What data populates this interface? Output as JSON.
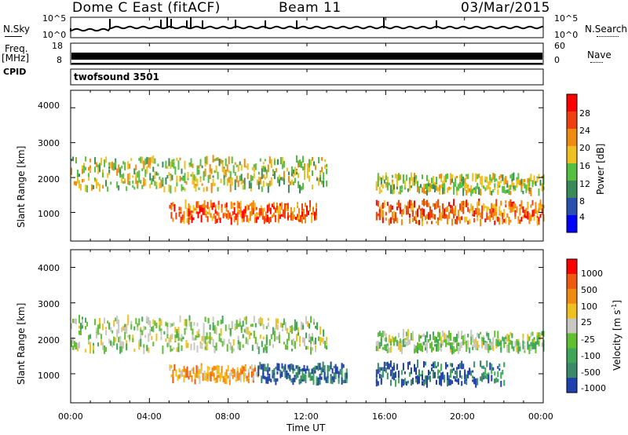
{
  "header": {
    "station": "Dome C East (fitACF)",
    "beam": "Beam 11",
    "date": "03/Mar/2015"
  },
  "strip_labels": {
    "nsky": "N.Sky",
    "freq": "Freq.",
    "freq_unit": "[MHz]",
    "cpid": "CPID",
    "nsearch": "N.Search",
    "nave": "Nave",
    "nsky_ticks": [
      "10^5",
      "10^0"
    ],
    "freq_ticks": [
      "18",
      "8"
    ],
    "nave_ticks": [
      "60",
      "0"
    ]
  },
  "cpid_text": "twofsound 3501",
  "chart_data": [
    {
      "type": "heatmap",
      "panel": "power",
      "ylabel": "Slant Range [km]",
      "xlabel": "Time UT",
      "ylim": [
        180,
        4500
      ],
      "yticks": [
        "4000",
        "3000",
        "2000",
        "1000"
      ],
      "xticks": [
        "00:00",
        "04:00",
        "08:00",
        "12:00",
        "16:00",
        "20:00",
        "00:00"
      ],
      "colorbar_label": "Power [dB]",
      "colorbar_ticks": [
        "28",
        "24",
        "20",
        "16",
        "12",
        "8",
        "4"
      ],
      "colors": [
        "#0000ff",
        "#2a4fb0",
        "#3a8a5a",
        "#55c040",
        "#f0c020",
        "#f08a10",
        "#f04010",
        "#ff0000"
      ],
      "scatter_bands": [
        {
          "t_start": 0.0,
          "t_end": 13.0,
          "range_center": 2100,
          "range_width": 900,
          "level": 4
        },
        {
          "t_start": 5.0,
          "t_end": 12.5,
          "range_center": 1000,
          "range_width": 500,
          "level": 6
        },
        {
          "t_start": 15.5,
          "t_end": 24.0,
          "range_center": 1000,
          "range_width": 600,
          "level": 6
        },
        {
          "t_start": 15.5,
          "t_end": 24.0,
          "range_center": 1800,
          "range_width": 500,
          "level": 4
        }
      ]
    },
    {
      "type": "heatmap",
      "panel": "velocity",
      "ylabel": "Slant Range [km]",
      "xlabel": "Time UT",
      "ylim": [
        180,
        4500
      ],
      "yticks": [
        "4000",
        "3000",
        "2000",
        "1000"
      ],
      "xticks": [
        "00:00",
        "04:00",
        "08:00",
        "12:00",
        "16:00",
        "20:00",
        "00:00"
      ],
      "colorbar_label": "Velocity [m s",
      "colorbar_label_sup": "-1",
      "colorbar_label_end": "]",
      "colorbar_ticks": [
        "1000",
        "500",
        "100",
        "25",
        "-25",
        "-100",
        "-500",
        "-1000"
      ],
      "colors": [
        "#2040b0",
        "#3a8a6a",
        "#3fa858",
        "#60c030",
        "#c8c8c0",
        "#f0c020",
        "#f08a10",
        "#f05a10",
        "#ff0000"
      ],
      "scatter_bands": [
        {
          "t_start": 0.0,
          "t_end": 13.0,
          "range_center": 2100,
          "range_width": 900,
          "level": 4
        },
        {
          "t_start": 5.0,
          "t_end": 9.5,
          "range_center": 1000,
          "range_width": 400,
          "level": 6
        },
        {
          "t_start": 9.5,
          "t_end": 14.0,
          "range_center": 1000,
          "range_width": 500,
          "level": 1
        },
        {
          "t_start": 15.5,
          "t_end": 22.0,
          "range_center": 1000,
          "range_width": 600,
          "level": 1
        },
        {
          "t_start": 15.5,
          "t_end": 24.0,
          "range_center": 1900,
          "range_width": 500,
          "level": 4
        }
      ]
    }
  ]
}
